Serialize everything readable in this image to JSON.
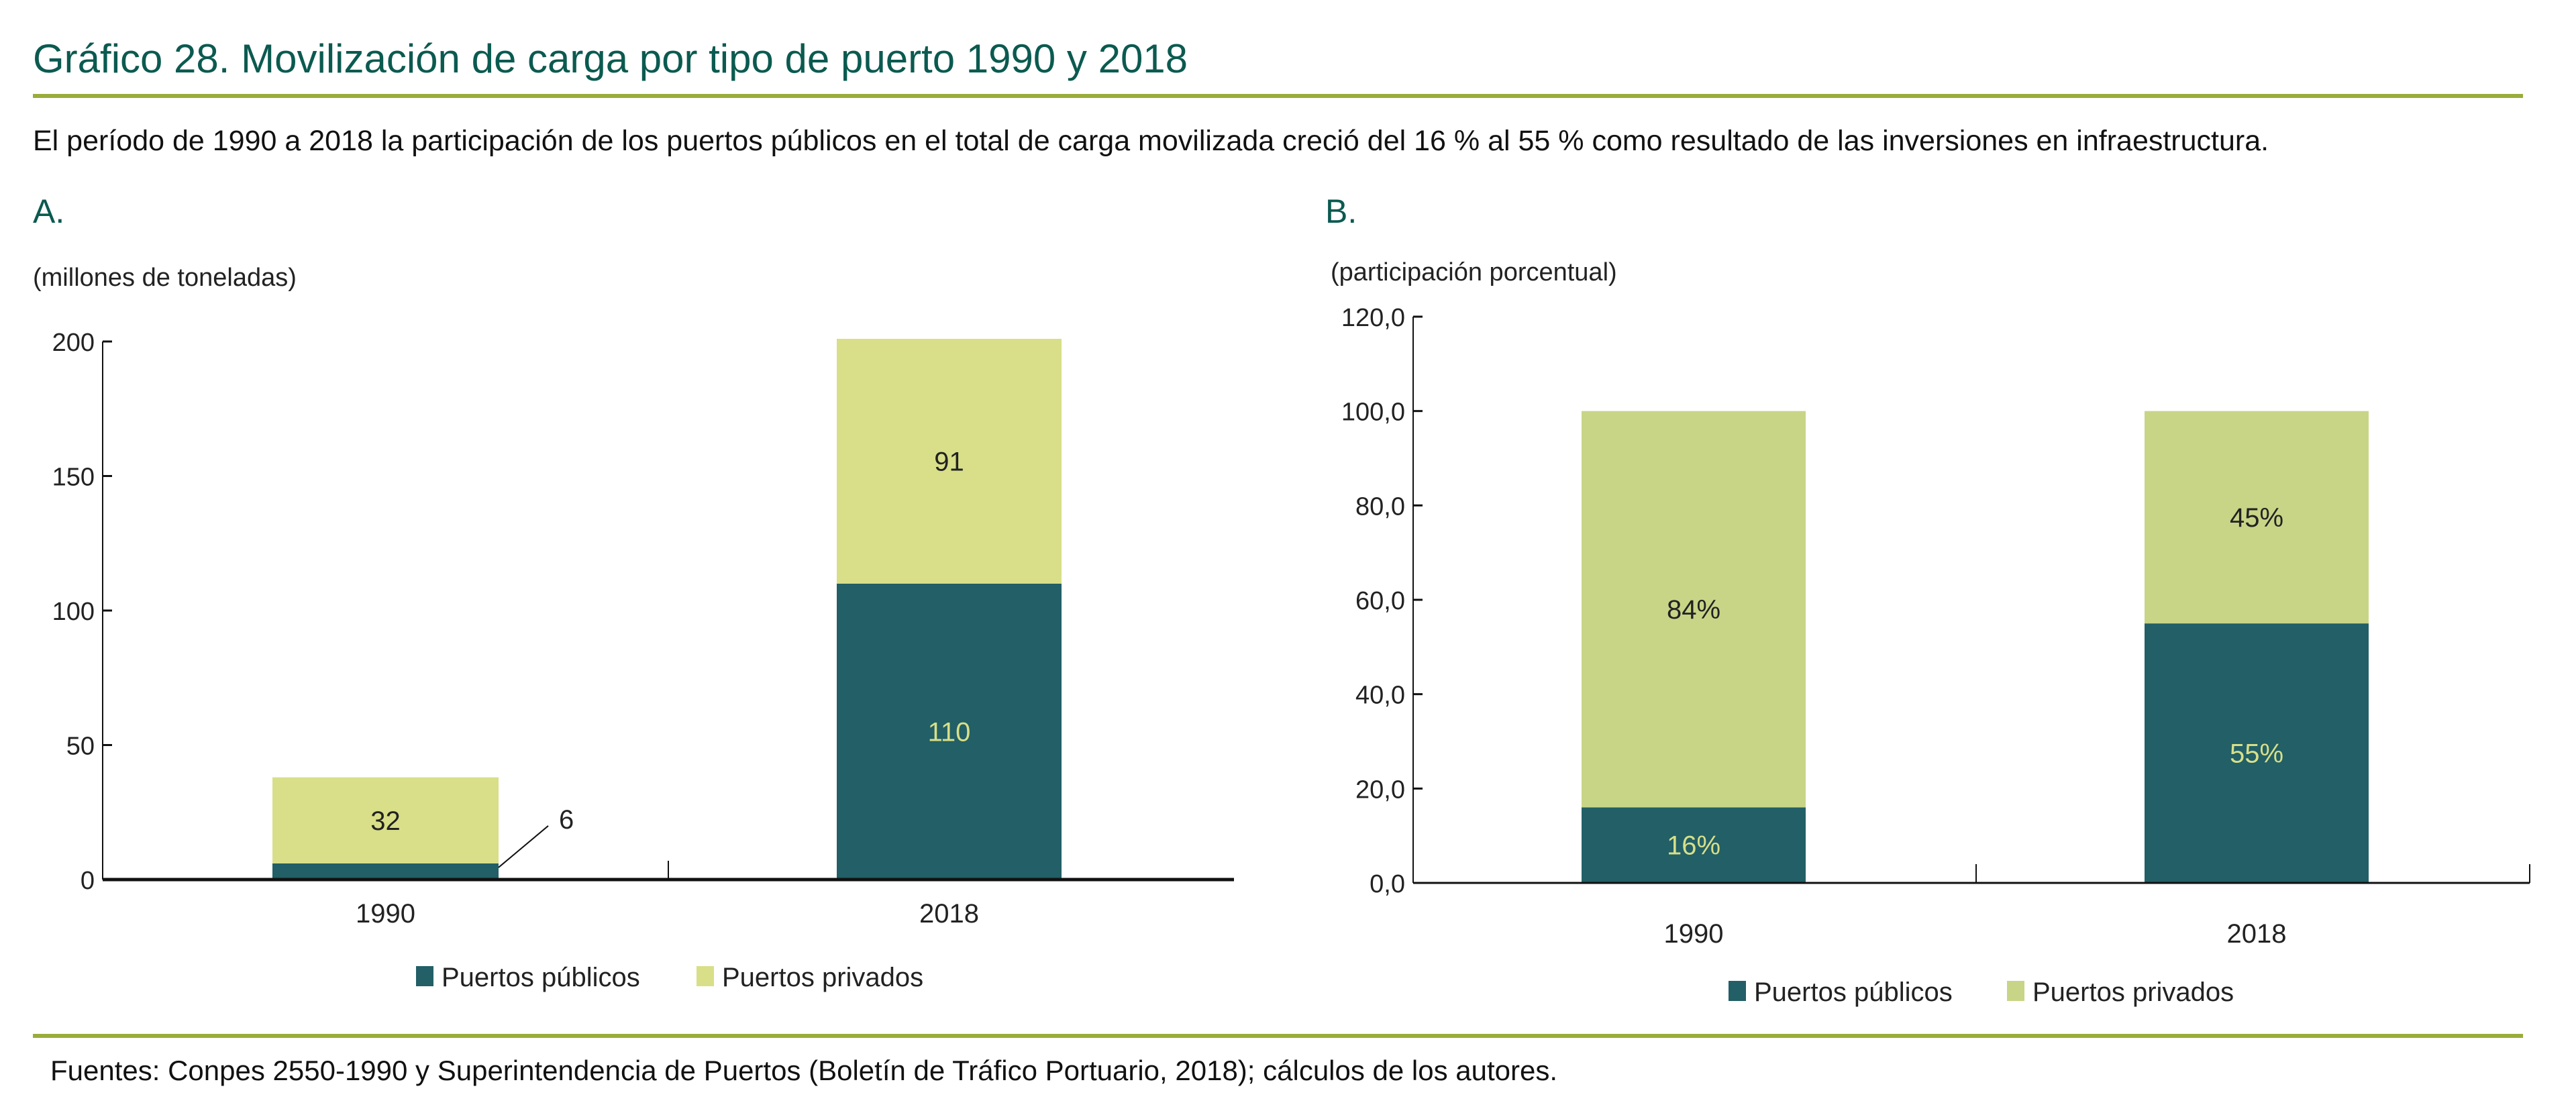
{
  "title": "Gráfico 28. Movilización de carga por tipo de puerto 1990 y 2018",
  "subtitle": "El período de 1990 a 2018 la participación de los puertos públicos en el total de carga movilizada creció del 16 % al 55 % como resultado de las inversiones en infraestructura.",
  "footer": "Fuentes: Conpes 2550-1990 y Superintendencia de Puertos (Boletín de Tráfico Portuario, 2018); cálculos de los autores.",
  "colors": {
    "title": "#0b5a50",
    "rule": "#9aac3a",
    "public": "#225f66",
    "private_a": "#d8df88",
    "private_b": "#c8d587",
    "label_on_dark": "#d8df88"
  },
  "chart_data": [
    {
      "type": "bar",
      "stacked": true,
      "panel": "A.",
      "ylabel": "(millones de toneladas)",
      "categories": [
        "1990",
        "2018"
      ],
      "ylim": [
        0,
        200
      ],
      "yticks": [
        "0",
        "50",
        "100",
        "150",
        "200"
      ],
      "series": [
        {
          "name": "Puertos públicos",
          "values": [
            6,
            110
          ],
          "labels": [
            "6",
            "110"
          ]
        },
        {
          "name": "Puertos privados",
          "values": [
            32,
            91
          ],
          "labels": [
            "32",
            "91"
          ]
        }
      ],
      "legend": "bottom",
      "grid": false
    },
    {
      "type": "bar",
      "stacked": true,
      "panel": "B.",
      "ylabel": "(participación porcentual)",
      "categories": [
        "1990",
        "2018"
      ],
      "ylim": [
        0,
        120
      ],
      "yticks": [
        "0,0",
        "20,0",
        "40,0",
        "60,0",
        "80,0",
        "100,0",
        "120,0"
      ],
      "series": [
        {
          "name": "Puertos públicos",
          "values": [
            16,
            55
          ],
          "labels": [
            "16%",
            "55%"
          ]
        },
        {
          "name": "Puertos privados",
          "values": [
            84,
            45
          ],
          "labels": [
            "84%",
            "45%"
          ]
        }
      ],
      "legend": "bottom",
      "grid": false
    }
  ]
}
